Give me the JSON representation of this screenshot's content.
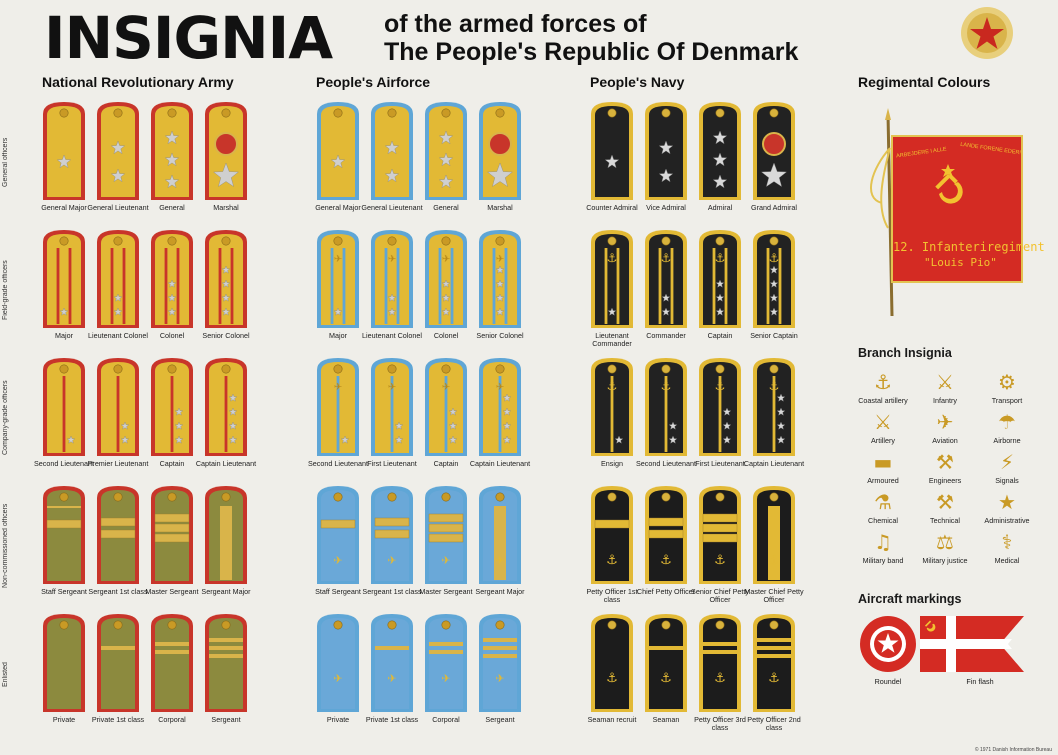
{
  "header": {
    "title": "INSIGNIA",
    "subtitle_line1": "of the armed forces of",
    "subtitle_line2": "The People's Republic Of Denmark",
    "emblem_icon": "star-emblem-icon"
  },
  "sections": {
    "army": "National Revolutionary Army",
    "airforce": "People's Airforce",
    "navy": "People's Navy",
    "colours": "Regimental Colours",
    "branch": "Branch Insignia",
    "aircraft": "Aircraft markings"
  },
  "row_labels": [
    "General officers",
    "Field-grade officers",
    "Company-grade officers",
    "Non-commissioned officers",
    "Enlisted"
  ],
  "army": {
    "colors": {
      "body": "#e2b935",
      "edge": "#c8352a"
    },
    "rows": [
      [
        "General Major",
        "General Lieutenant",
        "General",
        "Marshal"
      ],
      [
        "Major",
        "Lieutenant Colonel",
        "Colonel",
        "Senior Colonel"
      ],
      [
        "Second Lieutenant",
        "Premier Lieutenant",
        "Captain",
        "Captain Lieutenant"
      ],
      [
        "Staff Sergeant",
        "Sergeant 1st class",
        "Master Sergeant",
        "Sergeant Major"
      ],
      [
        "Private",
        "Private 1st class",
        "Corporal",
        "Sergeant"
      ]
    ]
  },
  "airforce": {
    "colors": {
      "body": "#e2b935",
      "edge": "#5fa6d6"
    },
    "rows": [
      [
        "General Major",
        "General Lieutenant",
        "General",
        "Marshal"
      ],
      [
        "Major",
        "Lieutenant Colonel",
        "Colonel",
        "Senior Colonel"
      ],
      [
        "Second Lieutenant",
        "First Lieutenant",
        "Captain",
        "Captain Lieutenant"
      ],
      [
        "Staff Sergeant",
        "Sergeant 1st class",
        "Master Sergeant",
        "Sergeant Major"
      ],
      [
        "Private",
        "Private 1st class",
        "Corporal",
        "Sergeant"
      ]
    ]
  },
  "navy": {
    "colors": {
      "body": "#222222",
      "edge": "#e2b935"
    },
    "rows": [
      [
        "Counter Admiral",
        "Vice Admiral",
        "Admiral",
        "Grand Admiral"
      ],
      [
        "Lieutenant Commander",
        "Commander",
        "Captain",
        "Senior Captain"
      ],
      [
        "Ensign",
        "Second Lieutenant",
        "First Lieutenant",
        "Captain Lieutenant"
      ],
      [
        "Petty Officer 1st class",
        "Chief Petty Officer",
        "Senior Chief Petty Officer",
        "Master Chief Petty Officer"
      ],
      [
        "Seaman recruit",
        "Seaman",
        "Petty Officer 3rd class",
        "Petty Officer 2nd class"
      ]
    ]
  },
  "flag": {
    "motto_left": "ARBEJDERE I ALLE",
    "motto_right": "LANDE FORENE EDER!",
    "regiment_line1": "12. Infanteriregiment",
    "regiment_line2": "\"Louis Pio\"",
    "color": "#d42b23",
    "text_color": "#f2c230"
  },
  "branches": [
    {
      "label": "Coastal artillery",
      "icon": "coastal-artillery-icon"
    },
    {
      "label": "Infantry",
      "icon": "infantry-icon"
    },
    {
      "label": "Transport",
      "icon": "transport-icon"
    },
    {
      "label": "Artillery",
      "icon": "artillery-icon"
    },
    {
      "label": "Aviation",
      "icon": "aviation-icon"
    },
    {
      "label": "Airborne",
      "icon": "airborne-icon"
    },
    {
      "label": "Armoured",
      "icon": "armoured-icon"
    },
    {
      "label": "Engineers",
      "icon": "engineers-icon"
    },
    {
      "label": "Signals",
      "icon": "signals-icon"
    },
    {
      "label": "Chemical",
      "icon": "chemical-icon"
    },
    {
      "label": "Technical",
      "icon": "technical-icon"
    },
    {
      "label": "Administrative",
      "icon": "administrative-icon"
    },
    {
      "label": "Military band",
      "icon": "military-band-icon"
    },
    {
      "label": "Military justice",
      "icon": "military-justice-icon"
    },
    {
      "label": "Medical",
      "icon": "medical-icon"
    }
  ],
  "aircraft": {
    "roundel_label": "Roundel",
    "finflash_label": "Fin flash"
  },
  "footer": {
    "copyright": "© 1971 Danish Information Bureau"
  }
}
